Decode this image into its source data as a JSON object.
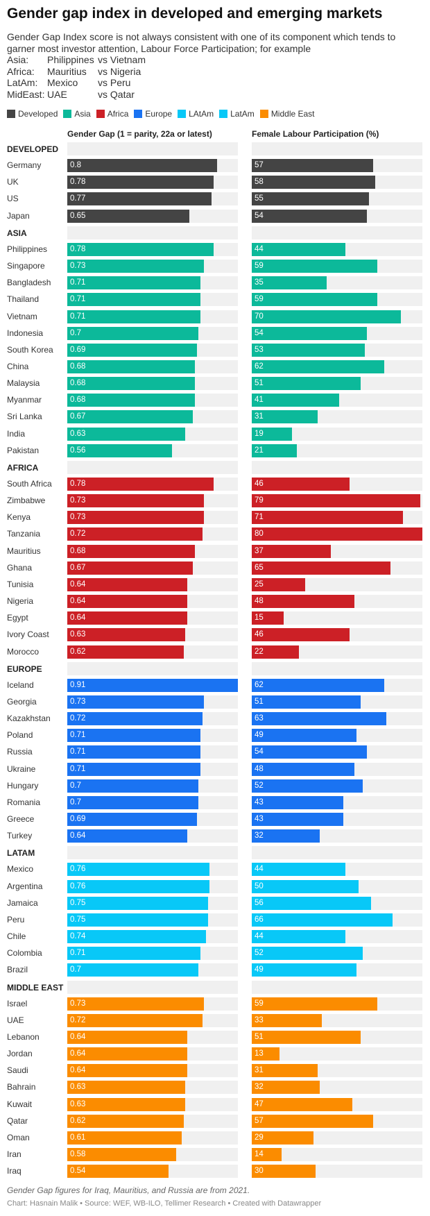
{
  "title": "Gender gap index in developed and emerging markets",
  "description": "Gender Gap Index score is not always consistent with one of its component which tends to garner most investor attention, Labour Force Participation; for example",
  "examples": [
    {
      "region": "Asia:",
      "a": "Philippines",
      "b": "vs Vietnam"
    },
    {
      "region": "Africa:",
      "a": "Mauritius",
      "b": "vs Nigeria"
    },
    {
      "region": "LatAm:",
      "a": "Mexico",
      "b": "vs Peru"
    },
    {
      "region": "MidEast:",
      "a": "UAE",
      "b": "vs Qatar"
    }
  ],
  "colors": {
    "Developed": "#444444",
    "Asia": "#0cb99a",
    "Africa": "#cc2026",
    "Europe": "#1a73f2",
    "LAtAm": "#08c8f7",
    "Middle East": "#fb8c00"
  },
  "legend": [
    {
      "label": "Developed",
      "color": "#444444"
    },
    {
      "label": "Asia",
      "color": "#0cb99a"
    },
    {
      "label": "Africa",
      "color": "#cc2026"
    },
    {
      "label": "Europe",
      "color": "#1a73f2"
    },
    {
      "label": "LAtAm",
      "color": "#08c8f7"
    },
    {
      "label": "LatAm",
      "color": "#08c8f7"
    },
    {
      "label": "Middle East",
      "color": "#fb8c00"
    }
  ],
  "chart_data": {
    "type": "bar",
    "orientation": "horizontal",
    "columns": [
      {
        "key": "gap",
        "label": "Gender Gap (1 = parity, 22a or latest)",
        "max": 0.91
      },
      {
        "key": "flp",
        "label": "Female Labour Participation (%)",
        "max": 80
      }
    ],
    "groups": [
      {
        "label": "DEVELOPED",
        "color_key": "Developed",
        "rows": [
          {
            "name": "Germany",
            "gap": 0.8,
            "flp": 57
          },
          {
            "name": "UK",
            "gap": 0.78,
            "flp": 58
          },
          {
            "name": "US",
            "gap": 0.77,
            "flp": 55
          },
          {
            "name": "Japan",
            "gap": 0.65,
            "flp": 54
          }
        ]
      },
      {
        "label": "ASIA",
        "color_key": "Asia",
        "rows": [
          {
            "name": "Philippines",
            "gap": 0.78,
            "flp": 44
          },
          {
            "name": "Singapore",
            "gap": 0.73,
            "flp": 59
          },
          {
            "name": "Bangladesh",
            "gap": 0.71,
            "flp": 35
          },
          {
            "name": "Thailand",
            "gap": 0.71,
            "flp": 59
          },
          {
            "name": "Vietnam",
            "gap": 0.71,
            "flp": 70
          },
          {
            "name": "Indonesia",
            "gap": 0.7,
            "flp": 54
          },
          {
            "name": "South Korea",
            "gap": 0.69,
            "flp": 53
          },
          {
            "name": "China",
            "gap": 0.68,
            "flp": 62
          },
          {
            "name": "Malaysia",
            "gap": 0.68,
            "flp": 51
          },
          {
            "name": "Myanmar",
            "gap": 0.68,
            "flp": 41
          },
          {
            "name": "Sri Lanka",
            "gap": 0.67,
            "flp": 31
          },
          {
            "name": "India",
            "gap": 0.63,
            "flp": 19
          },
          {
            "name": "Pakistan",
            "gap": 0.56,
            "flp": 21
          }
        ]
      },
      {
        "label": "AFRICA",
        "color_key": "Africa",
        "rows": [
          {
            "name": "South Africa",
            "gap": 0.78,
            "flp": 46
          },
          {
            "name": "Zimbabwe",
            "gap": 0.73,
            "flp": 79
          },
          {
            "name": "Kenya",
            "gap": 0.73,
            "flp": 71
          },
          {
            "name": "Tanzania",
            "gap": 0.72,
            "flp": 80
          },
          {
            "name": "Mauritius",
            "gap": 0.68,
            "flp": 37
          },
          {
            "name": "Ghana",
            "gap": 0.67,
            "flp": 65
          },
          {
            "name": "Tunisia",
            "gap": 0.64,
            "flp": 25
          },
          {
            "name": "Nigeria",
            "gap": 0.64,
            "flp": 48
          },
          {
            "name": "Egypt",
            "gap": 0.64,
            "flp": 15
          },
          {
            "name": "Ivory Coast",
            "gap": 0.63,
            "flp": 46
          },
          {
            "name": "Morocco",
            "gap": 0.62,
            "flp": 22
          }
        ]
      },
      {
        "label": "EUROPE",
        "color_key": "Europe",
        "rows": [
          {
            "name": "Iceland",
            "gap": 0.91,
            "flp": 62
          },
          {
            "name": "Georgia",
            "gap": 0.73,
            "flp": 51
          },
          {
            "name": "Kazakhstan",
            "gap": 0.72,
            "flp": 63
          },
          {
            "name": "Poland",
            "gap": 0.71,
            "flp": 49
          },
          {
            "name": "Russia",
            "gap": 0.71,
            "flp": 54
          },
          {
            "name": "Ukraine",
            "gap": 0.71,
            "flp": 48
          },
          {
            "name": "Hungary",
            "gap": 0.7,
            "flp": 52
          },
          {
            "name": "Romania",
            "gap": 0.7,
            "flp": 43
          },
          {
            "name": "Greece",
            "gap": 0.69,
            "flp": 43
          },
          {
            "name": "Turkey",
            "gap": 0.64,
            "flp": 32
          }
        ]
      },
      {
        "label": "LATAM",
        "color_key": "LAtAm",
        "rows": [
          {
            "name": "Mexico",
            "gap": 0.76,
            "flp": 44
          },
          {
            "name": "Argentina",
            "gap": 0.76,
            "flp": 50
          },
          {
            "name": "Jamaica",
            "gap": 0.75,
            "flp": 56
          },
          {
            "name": "Peru",
            "gap": 0.75,
            "flp": 66
          },
          {
            "name": "Chile",
            "gap": 0.74,
            "flp": 44
          },
          {
            "name": "Colombia",
            "gap": 0.71,
            "flp": 52
          },
          {
            "name": "Brazil",
            "gap": 0.7,
            "flp": 49
          }
        ]
      },
      {
        "label": "MIDDLE EAST",
        "color_key": "Middle East",
        "rows": [
          {
            "name": "Israel",
            "gap": 0.73,
            "flp": 59
          },
          {
            "name": "UAE",
            "gap": 0.72,
            "flp": 33
          },
          {
            "name": "Lebanon",
            "gap": 0.64,
            "flp": 51
          },
          {
            "name": "Jordan",
            "gap": 0.64,
            "flp": 13
          },
          {
            "name": "Saudi",
            "gap": 0.64,
            "flp": 31
          },
          {
            "name": "Bahrain",
            "gap": 0.63,
            "flp": 32
          },
          {
            "name": "Kuwait",
            "gap": 0.63,
            "flp": 47
          },
          {
            "name": "Qatar",
            "gap": 0.62,
            "flp": 57
          },
          {
            "name": "Oman",
            "gap": 0.61,
            "flp": 29
          },
          {
            "name": "Iran",
            "gap": 0.58,
            "flp": 14
          },
          {
            "name": "Iraq",
            "gap": 0.54,
            "flp": 30
          }
        ]
      }
    ]
  },
  "footnote": "Gender Gap figures for Iraq, Mauritius, and Russia are from 2021.",
  "credit": "Chart: Hasnain Malik • Source: WEF, WB-ILO, Tellimer Research • Created with Datawrapper"
}
